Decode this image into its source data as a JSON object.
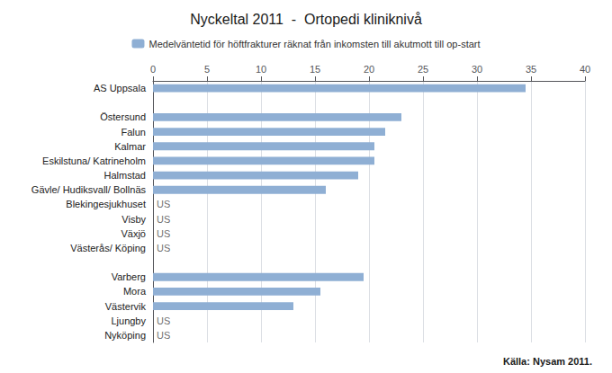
{
  "chart_data": {
    "type": "bar",
    "orientation": "horizontal",
    "title": "Nyckeltal 2011  -  Ortopedi kliniknivå",
    "categories": [
      "AS Uppsala",
      null,
      "Östersund",
      "Falun",
      "Kalmar",
      "Eskilstuna/ Katrineholm",
      "Halmstad",
      "Gävle/ Hudiksvall/ Bollnäs",
      "Blekingesjukhuset",
      "Visby",
      "Växjö",
      "Västerås/ Köping",
      null,
      "Varberg",
      "Mora",
      "Västervik",
      "Ljungby",
      "Nyköping"
    ],
    "series": [
      {
        "name": "Medelväntetid för höftfrakturer räknat från inkomsten till akutmott till op-start",
        "color": "#8fafd4",
        "values": [
          34.5,
          null,
          23.0,
          21.5,
          20.5,
          20.5,
          19.0,
          16.0,
          null,
          null,
          null,
          null,
          null,
          19.5,
          15.5,
          13.0,
          null,
          null
        ]
      }
    ],
    "annotations": [
      {
        "text": "US",
        "category": "Blekingesjukhuset"
      },
      {
        "text": "US",
        "category": "Visby"
      },
      {
        "text": "US",
        "category": "Växjö"
      },
      {
        "text": "US",
        "category": "Västerås/ Köping"
      },
      {
        "text": "US",
        "category": "Ljungby"
      },
      {
        "text": "US",
        "category": "Nyköping"
      }
    ],
    "source": "Källa: Nysam 2011.",
    "xlim": [
      0,
      40
    ],
    "xticks": [
      0,
      5,
      10,
      15,
      20,
      25,
      30,
      35,
      40
    ],
    "grid": true,
    "legend": "top"
  }
}
